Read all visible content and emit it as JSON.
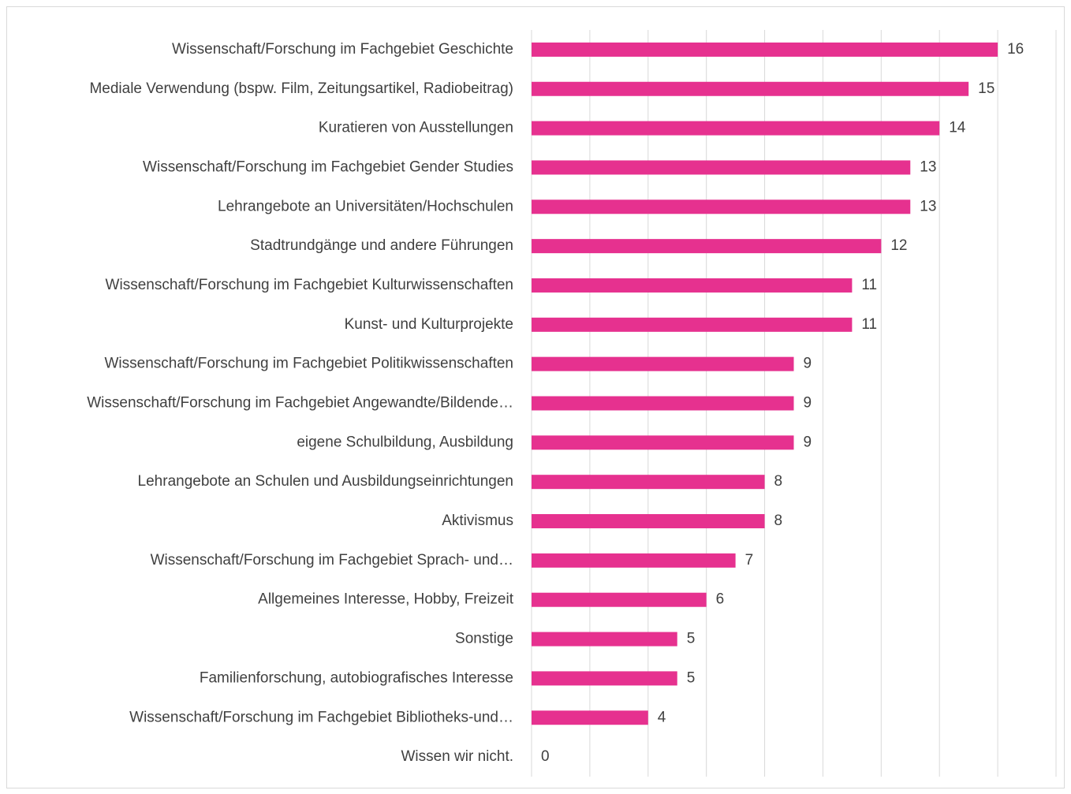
{
  "chart_data": {
    "type": "bar",
    "orientation": "horizontal",
    "categories": [
      "Wissenschaft/Forschung im Fachgebiet Geschichte",
      "Mediale Verwendung (bspw. Film, Zeitungsartikel, Radiobeitrag)",
      "Kuratieren von Ausstellungen",
      "Wissenschaft/Forschung im Fachgebiet Gender Studies",
      "Lehrangebote an Universitäten/Hochschulen",
      "Stadtrundgänge und andere Führungen",
      "Wissenschaft/Forschung im Fachgebiet Kulturwissenschaften",
      "Kunst- und Kulturprojekte",
      "Wissenschaft/Forschung im Fachgebiet Politikwissenschaften",
      "Wissenschaft/Forschung im Fachgebiet Angewandte/Bildende…",
      "eigene Schulbildung, Ausbildung",
      "Lehrangebote an Schulen und Ausbildungseinrichtungen",
      "Aktivismus",
      "Wissenschaft/Forschung im Fachgebiet Sprach- und…",
      "Allgemeines Interesse, Hobby, Freizeit",
      "Sonstige",
      "Familienforschung, autobiografisches Interesse",
      "Wissenschaft/Forschung im Fachgebiet Bibliotheks-und…",
      "Wissen wir nicht."
    ],
    "values": [
      16,
      15,
      14,
      13,
      13,
      12,
      11,
      11,
      9,
      9,
      9,
      8,
      8,
      7,
      6,
      5,
      5,
      4,
      0
    ],
    "color": "#e6318f",
    "xlim": [
      0,
      18
    ],
    "xticks": [
      0,
      2,
      4,
      6,
      8,
      10,
      12,
      14,
      16,
      18
    ],
    "grid": true
  }
}
